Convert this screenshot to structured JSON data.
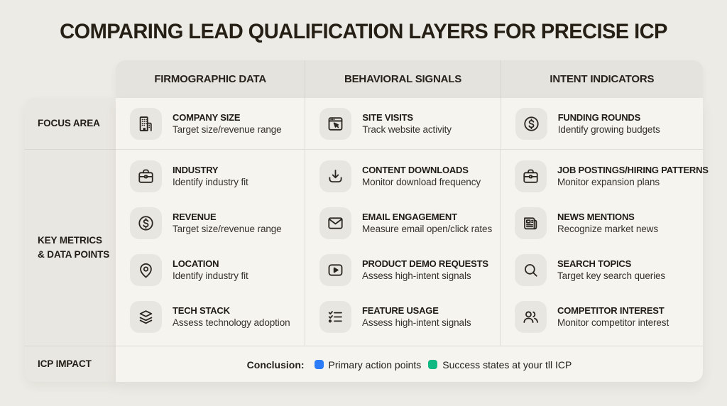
{
  "page": {
    "title": "COMPARING LEAD QUALIFICATION LAYERS FOR PRECISE ICP"
  },
  "columns": [
    "FIRMOGRAPHIC DATA",
    "BEHAVIORAL SIGNALS",
    "INTENT INDICATORS"
  ],
  "rows": {
    "focus": {
      "label": "FOCUS AREA",
      "cells": [
        {
          "icon": "building-icon",
          "title": "COMPANY SIZE",
          "subtitle": "Target size/revenue range"
        },
        {
          "icon": "browser-cursor-icon",
          "title": "SITE VISITS",
          "subtitle": "Track website activity"
        },
        {
          "icon": "dollar-circle-icon",
          "title": "FUNDING ROUNDS",
          "subtitle": "Identify growing budgets"
        }
      ]
    },
    "metrics": {
      "label_line1": "KEY METRICS",
      "label_line2": "& DATA POINTS",
      "firmographic": [
        {
          "icon": "briefcase-icon",
          "title": "INDUSTRY",
          "subtitle": "Identify industry fit"
        },
        {
          "icon": "dollar-circle-icon",
          "title": "REVENUE",
          "subtitle": "Target size/revenue range"
        },
        {
          "icon": "map-pin-icon",
          "title": "LOCATION",
          "subtitle": "Identify industry fit"
        },
        {
          "icon": "layers-icon",
          "title": "TECH STACK",
          "subtitle": "Assess technology adoption"
        }
      ],
      "behavioral": [
        {
          "icon": "download-icon",
          "title": "CONTENT DOWNLOADS",
          "subtitle": "Monitor download frequency"
        },
        {
          "icon": "envelope-icon",
          "title": "EMAIL ENGAGEMENT",
          "subtitle": "Measure email open/click rates"
        },
        {
          "icon": "play-square-icon",
          "title": "PRODUCT DEMO REQUESTS",
          "subtitle": "Assess high-intent signals"
        },
        {
          "icon": "checklist-icon",
          "title": "FEATURE USAGE",
          "subtitle": "Assess high-intent signals"
        }
      ],
      "intent": [
        {
          "icon": "briefcase-icon",
          "title": "JOB POSTINGS/HIRING PATTERNS",
          "subtitle": "Monitor expansion plans"
        },
        {
          "icon": "newspaper-icon",
          "title": "NEWS MENTIONS",
          "subtitle": "Recognize market news"
        },
        {
          "icon": "search-icon",
          "title": "SEARCH TOPICS",
          "subtitle": "Target key search queries"
        },
        {
          "icon": "users-icon",
          "title": "COMPETITOR INTEREST",
          "subtitle": "Monitor competitor interest"
        }
      ]
    },
    "impact": {
      "label": "ICP IMPACT",
      "conclusion_label": "Conclusion:",
      "legend": [
        {
          "color": "#2B7CF6",
          "label": "Primary action points"
        },
        {
          "color": "#10B981",
          "label": "Success states at your tll ICP"
        }
      ]
    }
  }
}
